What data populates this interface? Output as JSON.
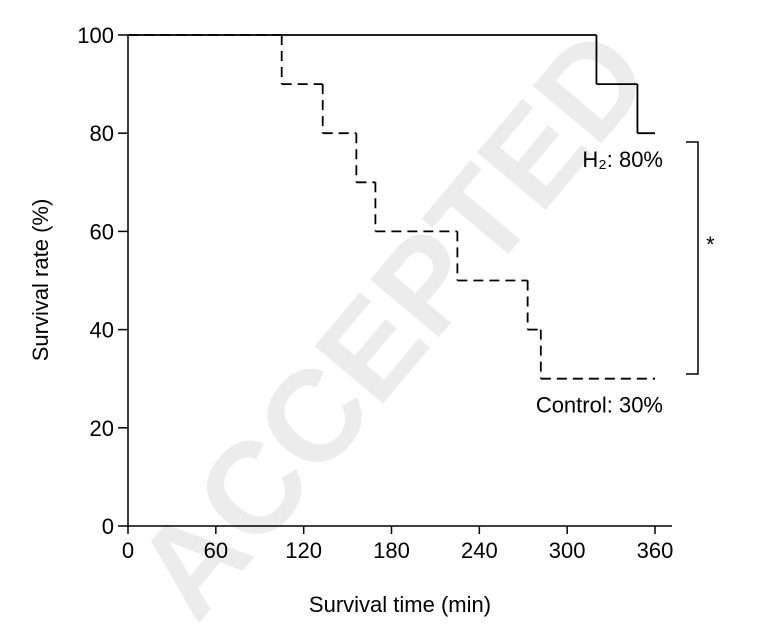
{
  "chart_data": {
    "type": "step",
    "xlabel": "Survival time (min)",
    "ylabel": "Survival rate (%)",
    "xlim": [
      0,
      360
    ],
    "xticks": [
      0,
      60,
      120,
      180,
      240,
      300,
      360
    ],
    "ylim": [
      0,
      100
    ],
    "yticks": [
      0,
      20,
      40,
      60,
      80,
      100
    ],
    "series": [
      {
        "label": "H₂: 80%",
        "color": "#000000",
        "dash": false,
        "x": [
          0,
          320,
          348,
          360
        ],
        "values": [
          100,
          90,
          80,
          80
        ]
      },
      {
        "label": "Control: 30%",
        "color": "#000000",
        "dash": true,
        "x": [
          0,
          105,
          133,
          156,
          169,
          225,
          273,
          282,
          360
        ],
        "values": [
          100,
          90,
          80,
          70,
          60,
          50,
          40,
          30,
          30
        ]
      }
    ],
    "significance": "*",
    "watermark": "ACCEPTED"
  }
}
